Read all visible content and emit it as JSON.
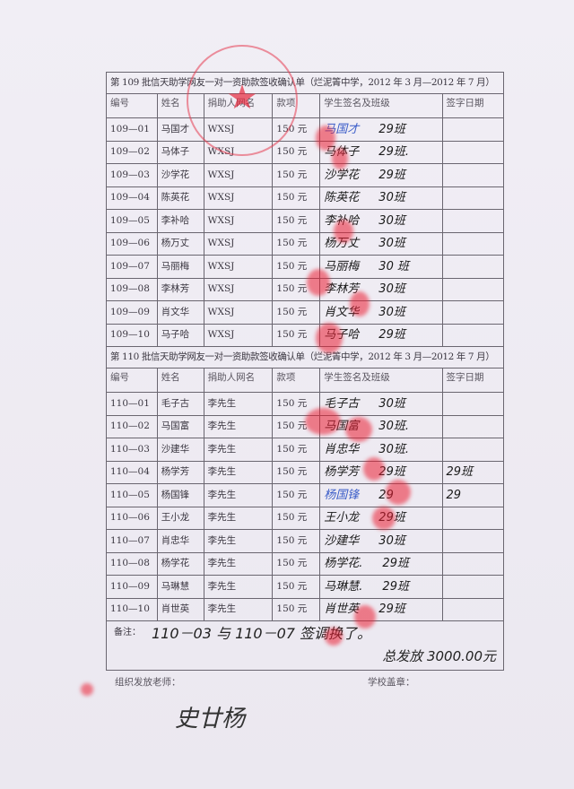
{
  "form109": {
    "title": "第 109 批信天助学网友一对一资助款签收确认单（烂泥箐中学，2012 年 3 月—2012 年 7 月）",
    "headers": [
      "编号",
      "姓名",
      "捐助人网名",
      "款项",
      "学生签名及班级",
      "签字日期"
    ],
    "rows": [
      {
        "id": "109—01",
        "name": "马国才",
        "donor": "WXSJ",
        "amount": "150 元",
        "signature": "马国才",
        "class": "29班",
        "date": ""
      },
      {
        "id": "109—02",
        "name": "马体子",
        "donor": "WXSJ",
        "amount": "150 元",
        "signature": "马体子",
        "class": "29班.",
        "date": ""
      },
      {
        "id": "109—03",
        "name": "沙学花",
        "donor": "WXSJ",
        "amount": "150 元",
        "signature": "沙学花",
        "class": "29班",
        "date": ""
      },
      {
        "id": "109—04",
        "name": "陈英花",
        "donor": "WXSJ",
        "amount": "150 元",
        "signature": "陈英花",
        "class": "30班",
        "date": ""
      },
      {
        "id": "109—05",
        "name": "李补哈",
        "donor": "WXSJ",
        "amount": "150 元",
        "signature": "李补哈",
        "class": "30班",
        "date": ""
      },
      {
        "id": "109—06",
        "name": "杨万丈",
        "donor": "WXSJ",
        "amount": "150 元",
        "signature": "杨万丈",
        "class": "30班",
        "date": ""
      },
      {
        "id": "109—07",
        "name": "马丽梅",
        "donor": "WXSJ",
        "amount": "150 元",
        "signature": "马丽梅",
        "class": "30 班",
        "date": ""
      },
      {
        "id": "109—08",
        "name": "李林芳",
        "donor": "WXSJ",
        "amount": "150 元",
        "signature": "李林芳",
        "class": "30班",
        "date": ""
      },
      {
        "id": "109—09",
        "name": "肖文华",
        "donor": "WXSJ",
        "amount": "150 元",
        "signature": "肖文华",
        "class": "30班",
        "date": ""
      },
      {
        "id": "109—10",
        "name": "马子哈",
        "donor": "WXSJ",
        "amount": "150 元",
        "signature": "马子哈",
        "class": "29班",
        "date": ""
      }
    ]
  },
  "form110": {
    "title": "第 110 批信天助学网友一对一资助款签收确认单（烂泥箐中学，2012 年 3 月—2012 年 7 月）",
    "headers": [
      "编号",
      "姓名",
      "捐助人网名",
      "款项",
      "学生签名及班级",
      "签字日期"
    ],
    "rows": [
      {
        "id": "110—01",
        "name": "毛子古",
        "donor": "李先生",
        "amount": "150 元",
        "signature": "毛子古",
        "class": "30班",
        "date": ""
      },
      {
        "id": "110—02",
        "name": "马国富",
        "donor": "李先生",
        "amount": "150 元",
        "signature": "马国富",
        "class": "30班.",
        "date": ""
      },
      {
        "id": "110—03",
        "name": "沙建华",
        "donor": "李先生",
        "amount": "150 元",
        "signature": "肖忠华",
        "class": "30班.",
        "date": ""
      },
      {
        "id": "110—04",
        "name": "杨学芳",
        "donor": "李先生",
        "amount": "150 元",
        "signature": "杨学芳",
        "class": "29班",
        "date": "29班"
      },
      {
        "id": "110—05",
        "name": "杨国锋",
        "donor": "李先生",
        "amount": "150 元",
        "signature": "杨国锋",
        "class": "29",
        "date": "29"
      },
      {
        "id": "110—06",
        "name": "王小龙",
        "donor": "李先生",
        "amount": "150 元",
        "signature": "王小龙",
        "class": "29班",
        "date": ""
      },
      {
        "id": "110—07",
        "name": "肖忠华",
        "donor": "李先生",
        "amount": "150 元",
        "signature": "沙建华",
        "class": "30班",
        "date": ""
      },
      {
        "id": "110—08",
        "name": "杨学花",
        "donor": "李先生",
        "amount": "150 元",
        "signature": "杨学花.",
        "class": "29班",
        "date": ""
      },
      {
        "id": "110—09",
        "name": "马琳慧",
        "donor": "李先生",
        "amount": "150 元",
        "signature": "马琳慧.",
        "class": "29班",
        "date": ""
      },
      {
        "id": "110—10",
        "name": "肖世英",
        "donor": "李先生",
        "amount": "150 元",
        "signature": "肖世英",
        "class": "29班",
        "date": ""
      }
    ]
  },
  "notes": {
    "label": "备注：",
    "line1": "110－03 与 110－07 签调换了。",
    "line2": "总发放 3000.00元"
  },
  "footer": {
    "teacher_label": "组织发放老师：",
    "school_seal_label": "学校盖章：",
    "teacher_signature": "史廿杨"
  },
  "colors": {
    "ink": "#1a1a1a",
    "blue_ink": "#3a5cc8",
    "fingerprint_red": "#eb1e32"
  }
}
